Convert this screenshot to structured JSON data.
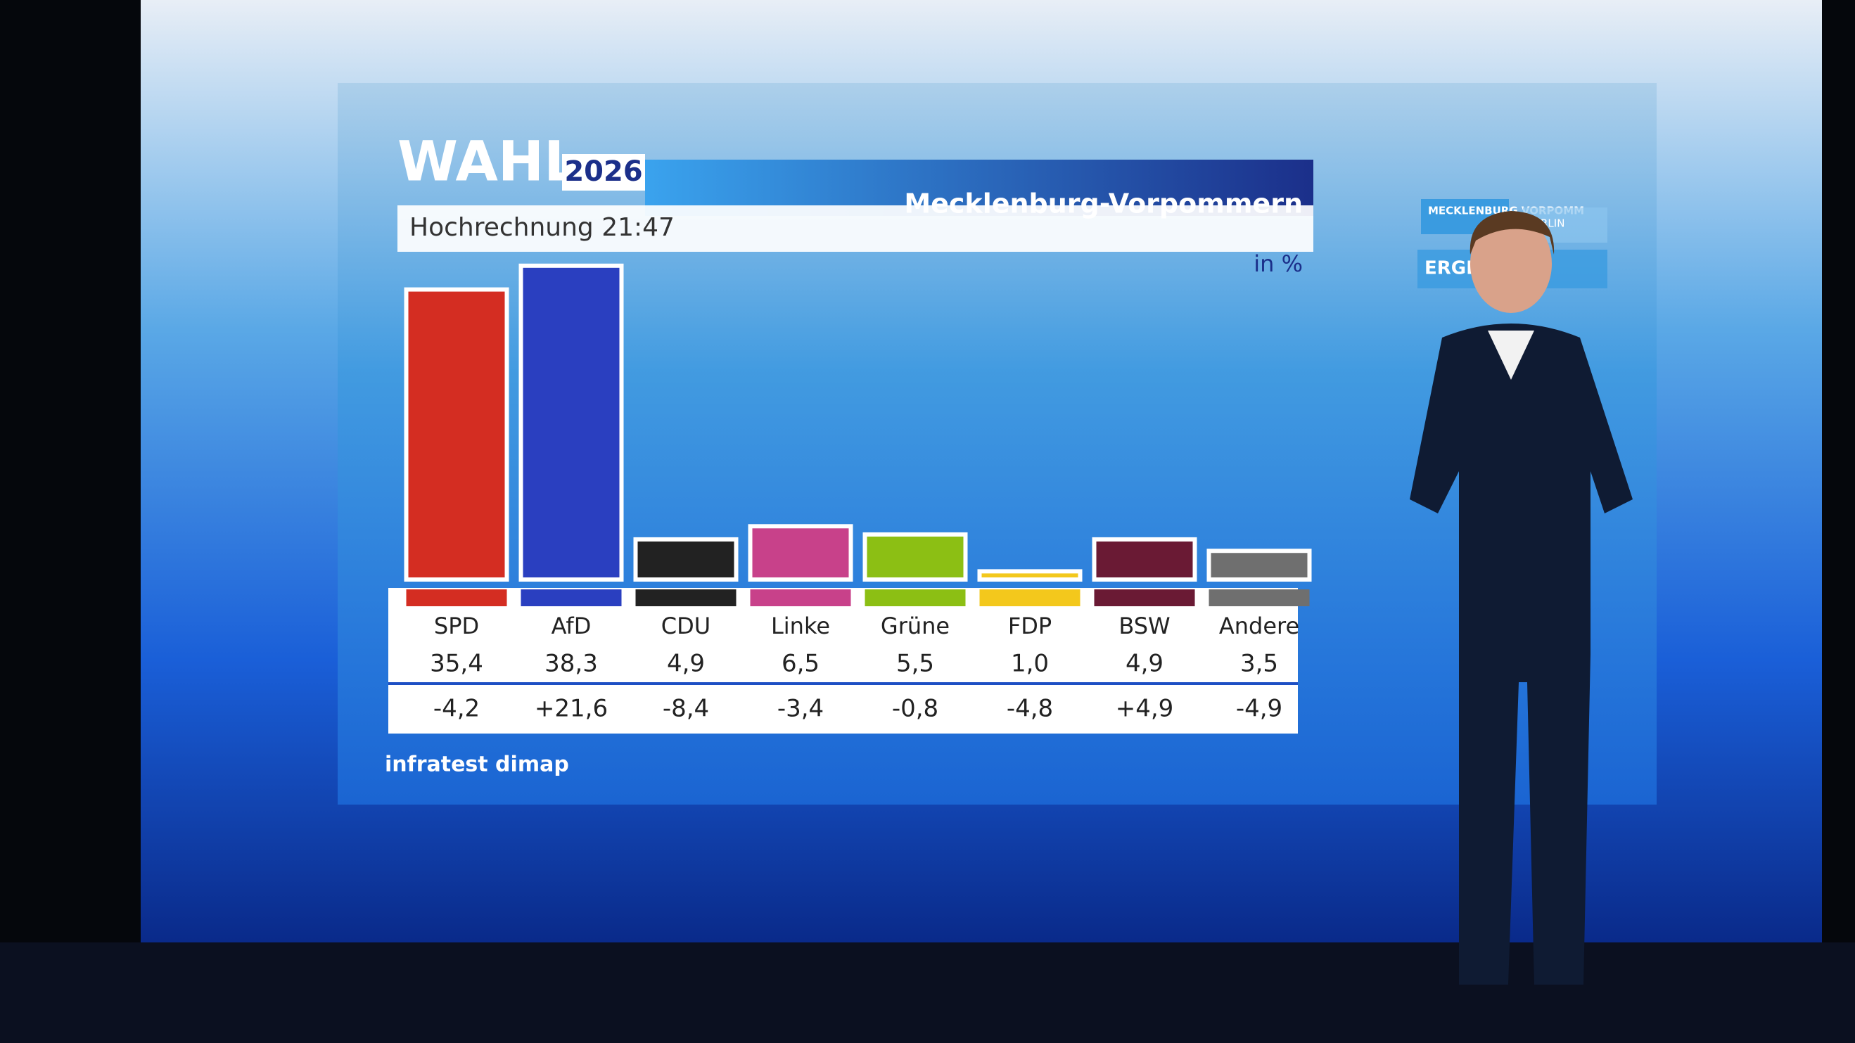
{
  "chart_data": {
    "type": "bar",
    "brand": "WAHL",
    "year": "2026",
    "region": "Mecklenburg-Vorpommern",
    "title": "Hochrechnung 21:47",
    "unit_label": "in %",
    "source": "infratest dimap",
    "categories": [
      "SPD",
      "AfD",
      "CDU",
      "Linke",
      "Grüne",
      "FDP",
      "BSW",
      "Andere"
    ],
    "values": [
      35.4,
      38.3,
      4.9,
      6.5,
      5.5,
      1.0,
      4.9,
      3.5
    ],
    "value_labels": [
      "35,4",
      "38,3",
      "4,9",
      "6,5",
      "5,5",
      "1,0",
      "4,9",
      "3,5"
    ],
    "changes": [
      "-4,2",
      "+21,6",
      "-8,4",
      "-3,4",
      "-0,8",
      "-4,8",
      "+4,9",
      "-4,9"
    ],
    "colors": [
      "#d42d22",
      "#2a3fc0",
      "#222222",
      "#c8418a",
      "#8cbf14",
      "#f3c81c",
      "#6a1a34",
      "#6f6f6f"
    ]
  },
  "side_panel": {
    "tab1": "MECKLENBURG VORPOMM",
    "tab2": "RLIN",
    "tab3": "ERGE"
  }
}
